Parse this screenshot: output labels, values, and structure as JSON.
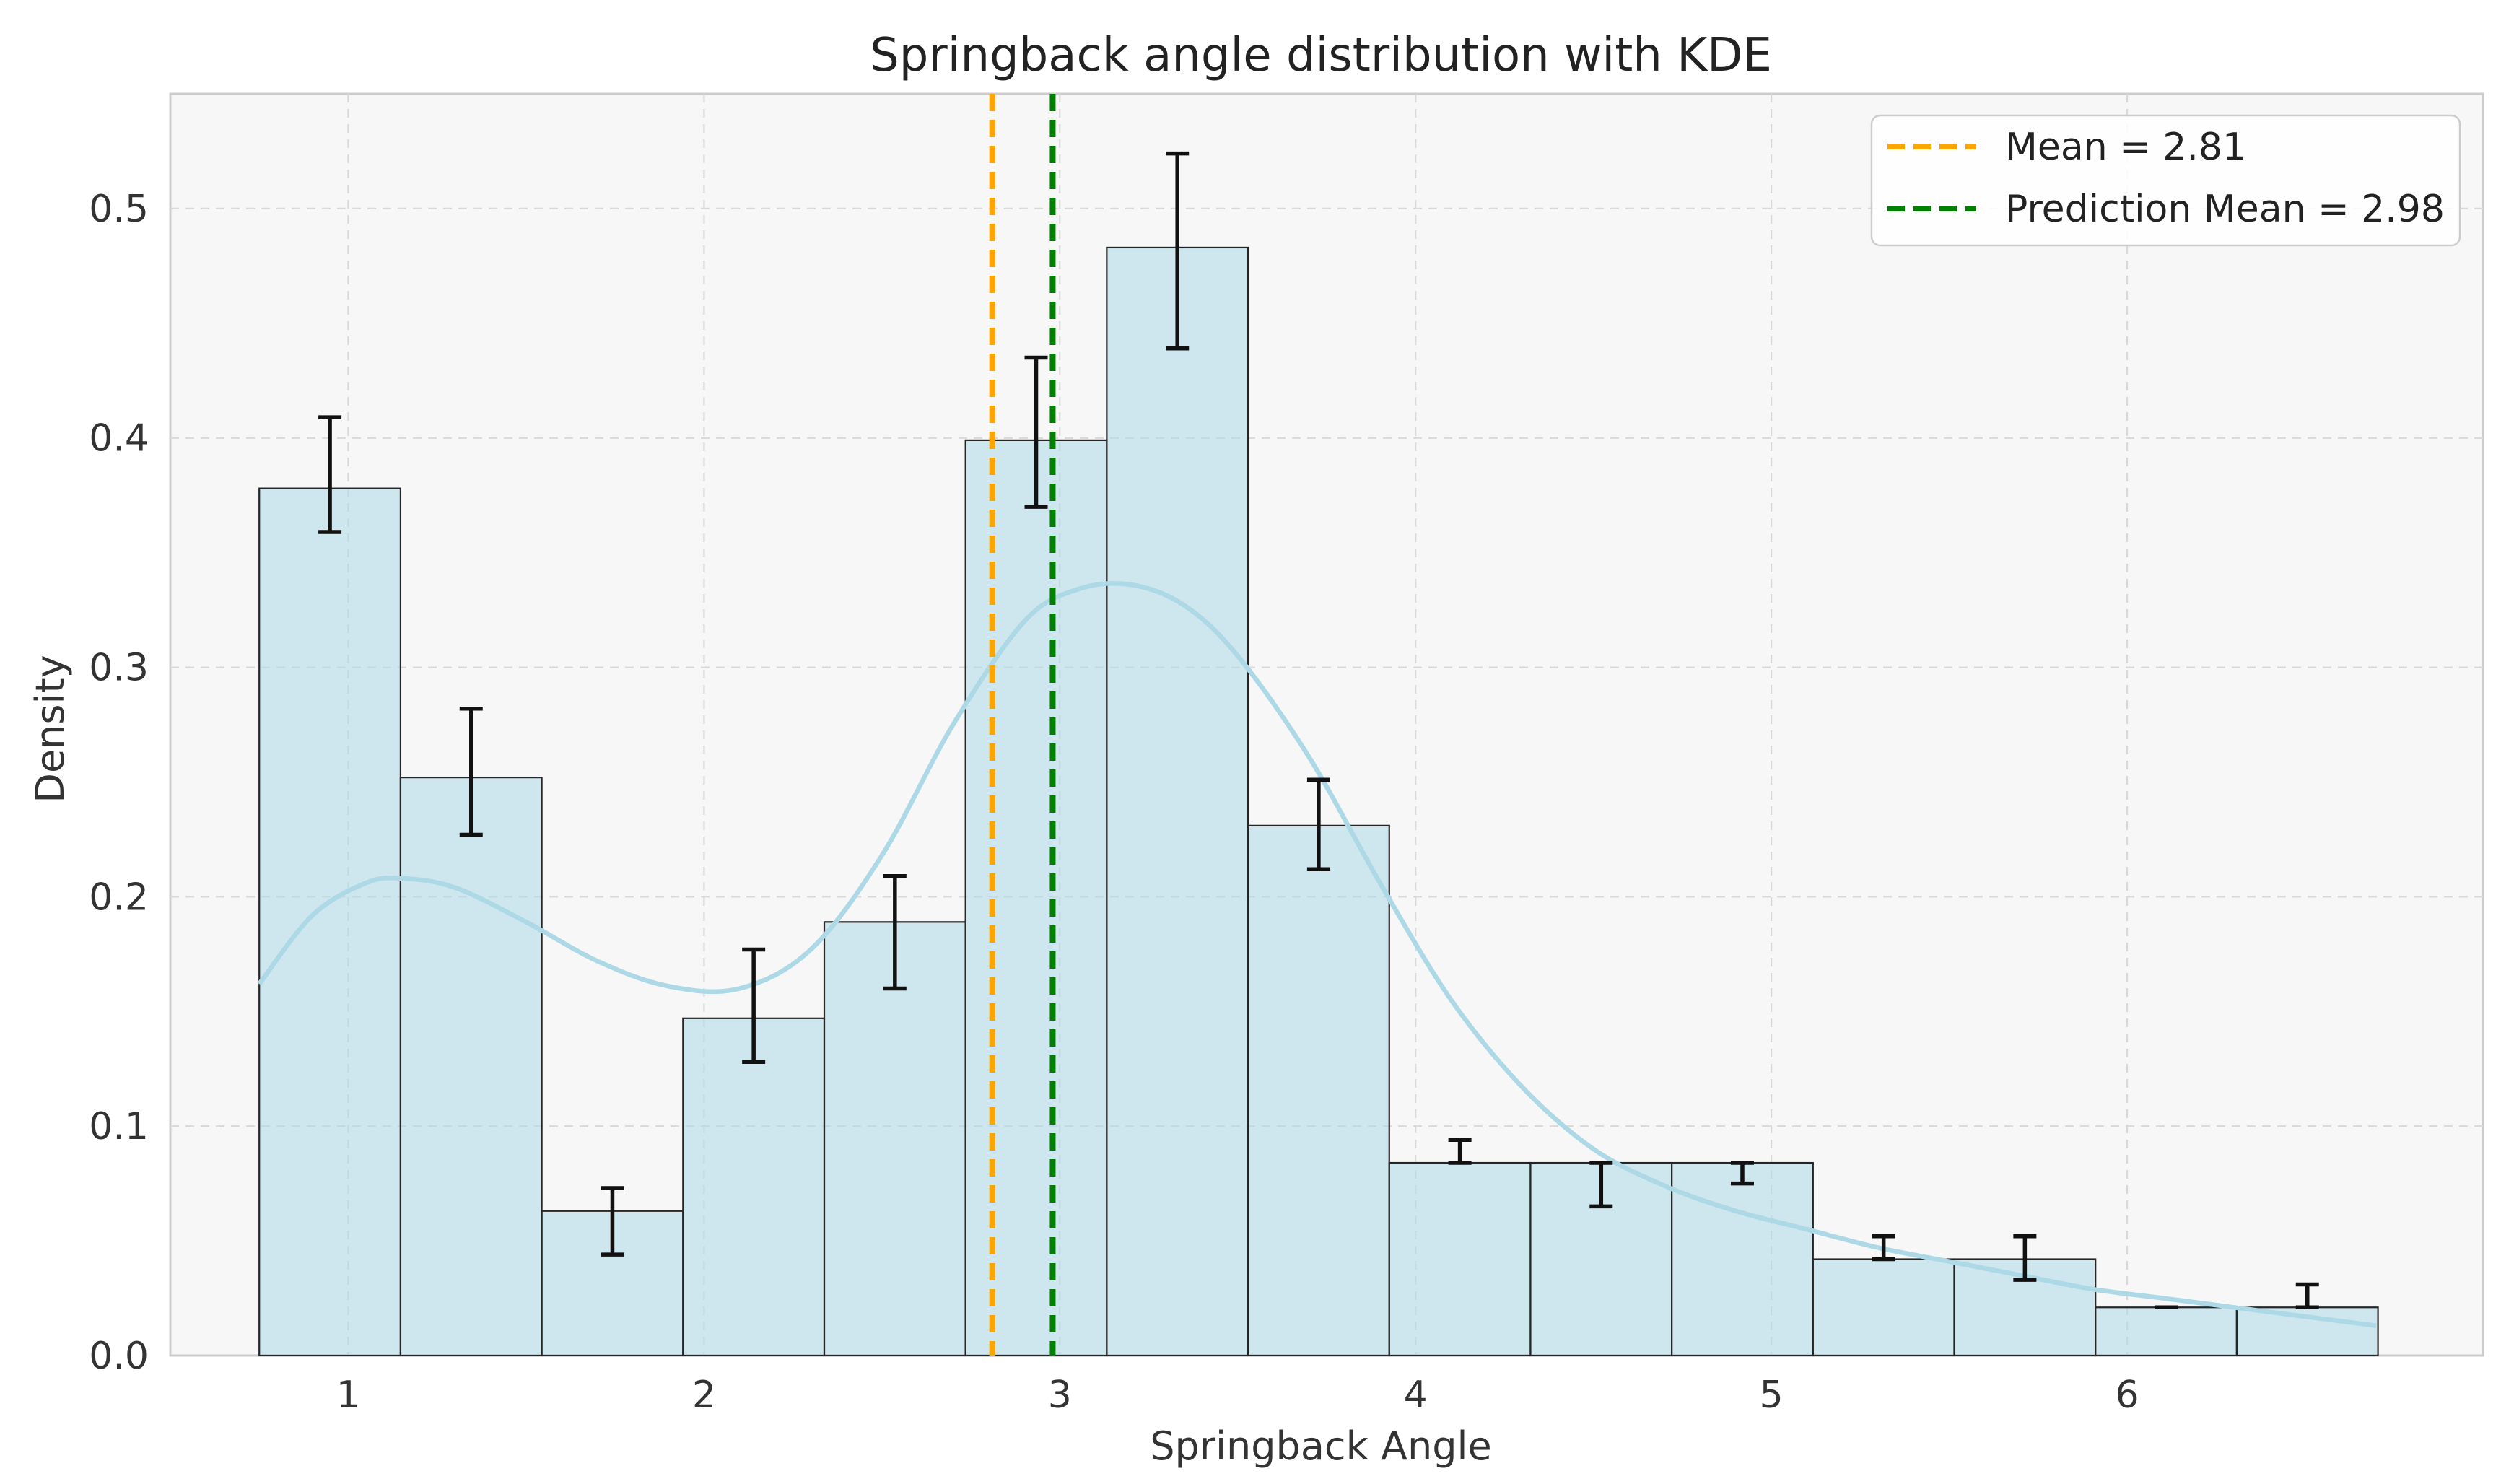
{
  "chart_data": {
    "type": "bar",
    "title": "Springback angle distribution with KDE",
    "xlabel": "Springback Angle",
    "ylabel": "Density",
    "xlim": [
      0.5,
      7.0
    ],
    "ylim": [
      0.0,
      0.55
    ],
    "grid": true,
    "xticks": [
      1,
      2,
      3,
      4,
      5,
      6
    ],
    "yticks": [
      0.0,
      0.1,
      0.2,
      0.3,
      0.4,
      0.5
    ],
    "xtick_labels": [
      "1",
      "2",
      "3",
      "4",
      "5",
      "6"
    ],
    "ytick_labels": [
      "0.0",
      "0.1",
      "0.2",
      "0.3",
      "0.4",
      "0.5"
    ],
    "bins": {
      "start": 0.75,
      "width": 0.397,
      "values": [
        0.378,
        0.252,
        0.063,
        0.147,
        0.189,
        0.399,
        0.483,
        0.231,
        0.084,
        0.084,
        0.084,
        0.042,
        0.042,
        0.021,
        0.021
      ],
      "err_low": [
        0.359,
        0.227,
        0.044,
        0.128,
        0.16,
        0.37,
        0.439,
        0.212,
        0.084,
        0.065,
        0.075,
        0.042,
        0.033,
        0.021,
        0.021
      ],
      "err_high": [
        0.409,
        0.282,
        0.073,
        0.177,
        0.209,
        0.435,
        0.524,
        0.251,
        0.094,
        0.084,
        0.084,
        0.052,
        0.052,
        0.021,
        0.031
      ]
    },
    "kde": {
      "name": "KDE",
      "color": "#add8e6",
      "x": [
        0.75,
        0.9,
        1.05,
        1.15,
        1.3,
        1.5,
        1.7,
        1.9,
        2.1,
        2.3,
        2.5,
        2.7,
        2.9,
        3.05,
        3.2,
        3.35,
        3.5,
        3.7,
        3.9,
        4.1,
        4.3,
        4.5,
        4.7,
        4.9,
        5.1,
        5.3,
        5.5,
        5.7,
        5.9,
        6.1,
        6.3,
        6.5,
        6.7
      ],
      "y": [
        0.162,
        0.192,
        0.206,
        0.208,
        0.204,
        0.189,
        0.172,
        0.161,
        0.16,
        0.177,
        0.218,
        0.275,
        0.32,
        0.334,
        0.336,
        0.327,
        0.305,
        0.261,
        0.206,
        0.155,
        0.117,
        0.09,
        0.074,
        0.063,
        0.055,
        0.047,
        0.041,
        0.035,
        0.029,
        0.025,
        0.021,
        0.017,
        0.013
      ]
    },
    "lines": [
      {
        "name": "Mean = 2.81",
        "x": 2.81,
        "color": "#ffa500"
      },
      {
        "name": "Prediction Mean = 2.98",
        "x": 2.98,
        "color": "#008000"
      }
    ],
    "legend": {
      "position": "top-right"
    }
  }
}
